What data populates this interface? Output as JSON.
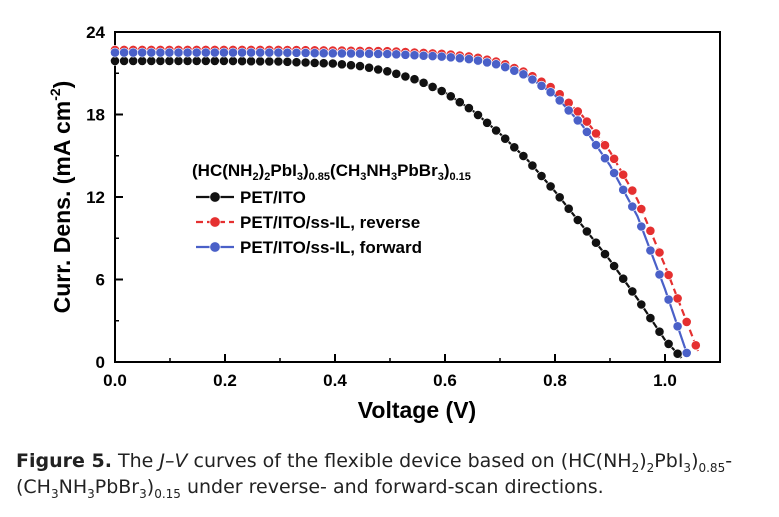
{
  "chart_data": {
    "type": "line",
    "xlabel": "Voltage (V)",
    "ylabel_main": "Curr. Dens. (mA cm",
    "ylabel_sup": "-2",
    "ylabel_close": ")",
    "xlim": [
      0.0,
      1.1
    ],
    "ylim": [
      0,
      24
    ],
    "xticks": [
      "0.0",
      "0.2",
      "0.4",
      "0.6",
      "0.8",
      "1.0"
    ],
    "yticks": [
      "0",
      "6",
      "12",
      "18",
      "24"
    ],
    "legend_title": {
      "p1": "(HC(NH",
      "s1": "2",
      "p2": ")",
      "s2": "2",
      "p3": "PbI",
      "s3": "3",
      "p4": ")",
      "s4": "0.85",
      "p5": "(CH",
      "s5": "3",
      "p6": "NH",
      "s6": "3",
      "p7": "PbBr",
      "s7": "3",
      "p8": ")",
      "s8": "0.15"
    },
    "legend_placement": "center-left",
    "grid": false,
    "series": [
      {
        "name": "PET/ITO",
        "color": "#111111",
        "dashed": false,
        "x": [
          0.0,
          0.1,
          0.2,
          0.3,
          0.4,
          0.45,
          0.5,
          0.55,
          0.6,
          0.65,
          0.7,
          0.75,
          0.8,
          0.85,
          0.9,
          0.95,
          1.0,
          1.03
        ],
        "y": [
          21.9,
          21.9,
          21.9,
          21.85,
          21.7,
          21.5,
          21.1,
          20.5,
          19.6,
          18.3,
          16.6,
          14.7,
          12.4,
          9.9,
          7.4,
          4.6,
          1.6,
          0.3
        ]
      },
      {
        "name": "PET/ITO/ss-IL, reverse",
        "color": "#e53030",
        "dashed": true,
        "x": [
          0.0,
          0.1,
          0.2,
          0.3,
          0.4,
          0.5,
          0.6,
          0.65,
          0.7,
          0.75,
          0.8,
          0.85,
          0.9,
          0.95,
          1.0,
          1.03,
          1.06
        ],
        "y": [
          22.7,
          22.7,
          22.7,
          22.7,
          22.65,
          22.6,
          22.4,
          22.2,
          21.8,
          21.0,
          19.8,
          17.9,
          15.3,
          11.8,
          7.0,
          3.9,
          0.8
        ]
      },
      {
        "name": "PET/ITO/ss-IL, forward",
        "color": "#4a60c8",
        "dashed": false,
        "x": [
          0.0,
          0.1,
          0.2,
          0.3,
          0.4,
          0.5,
          0.6,
          0.65,
          0.7,
          0.75,
          0.8,
          0.85,
          0.9,
          0.95,
          1.0,
          1.04
        ],
        "y": [
          22.5,
          22.5,
          22.5,
          22.5,
          22.45,
          22.4,
          22.2,
          22.0,
          21.6,
          20.8,
          19.4,
          17.2,
          14.3,
          10.6,
          5.3,
          0.6
        ]
      }
    ]
  },
  "caption": {
    "fig_label": "Figure 5.",
    "t1": " The ",
    "jv": "J–V",
    "t2": " curves of the flexible device based on (HC(NH",
    "s1": "2",
    "t3": ")",
    "s2": "2",
    "t4": "PbI",
    "s3": "3",
    "t5": ")",
    "s4": "0.85",
    "t6": "-",
    "t7": "(CH",
    "s5": "3",
    "t8": "NH",
    "s6": "3",
    "t9": "PbBr",
    "s7": "3",
    "t10": ")",
    "s8": "0.15",
    "t11": " under reverse- and forward-scan directions."
  }
}
